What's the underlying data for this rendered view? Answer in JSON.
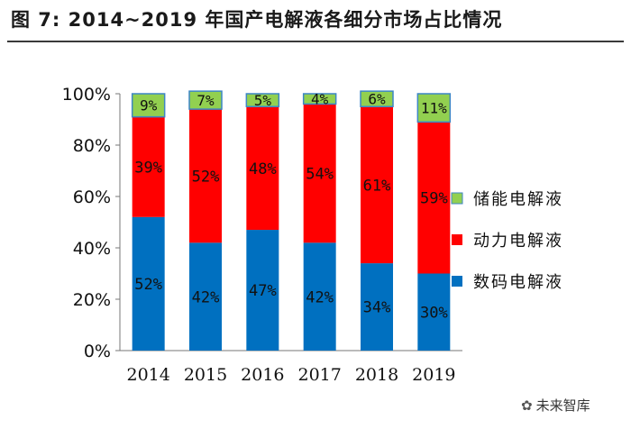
{
  "title": "图 7:  2014~2019 年国产电解液各细分市场占比情况",
  "watermark": "未来智库",
  "chart_data": {
    "type": "bar",
    "stacked": true,
    "categories": [
      "2014",
      "2015",
      "2016",
      "2017",
      "2018",
      "2019"
    ],
    "series": [
      {
        "name": "数码电解液",
        "color": "#0070C0",
        "values": [
          52,
          42,
          47,
          42,
          34,
          30
        ],
        "labels": [
          "52%",
          "42%",
          "47%",
          "42%",
          "34%",
          "30%"
        ]
      },
      {
        "name": "动力电解液",
        "color": "#FF0000",
        "values": [
          39,
          52,
          48,
          54,
          61,
          59
        ],
        "labels": [
          "39%",
          "52%",
          "48%",
          "54%",
          "61%",
          "59%"
        ]
      },
      {
        "name": "储能电解液",
        "color": "#92D050",
        "values": [
          9,
          7,
          5,
          4,
          6,
          11
        ],
        "labels": [
          "9%",
          "7%",
          "5%",
          "4%",
          "6%",
          "11%"
        ]
      }
    ],
    "yticks": [
      "0%",
      "20%",
      "40%",
      "60%",
      "80%",
      "100%"
    ],
    "ylim": [
      0,
      100
    ],
    "legend_position": "right",
    "grid": false
  }
}
